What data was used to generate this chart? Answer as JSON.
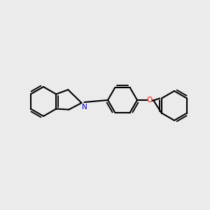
{
  "bg_color": "#ebebeb",
  "bond_color": "#000000",
  "N_color": "#0000cc",
  "O_color": "#ff0000",
  "lw": 1.5,
  "figsize": [
    3.0,
    3.0
  ],
  "dpi": 100
}
